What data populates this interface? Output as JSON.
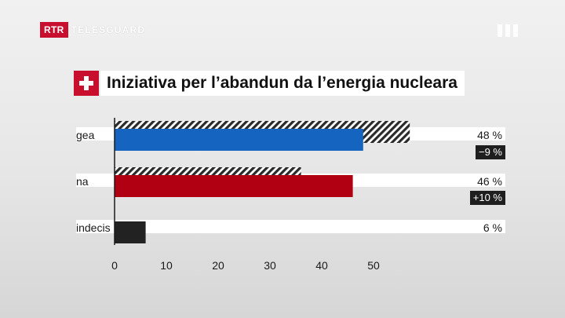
{
  "header": {
    "logo_short": "RTR",
    "logo_name": "TELESGUARD"
  },
  "chart_data": {
    "type": "bar",
    "orientation": "horizontal",
    "title": "Iniziativa per l’abandun da l’energia nucleara",
    "categories": [
      "gea",
      "na",
      "indecis"
    ],
    "values": [
      48,
      46,
      6
    ],
    "value_labels": [
      "48 %",
      "46 %",
      "6 %"
    ],
    "previous_values": [
      57,
      36,
      null
    ],
    "changes": [
      "−9 %",
      "+10 %",
      null
    ],
    "colors": [
      "#1565c0",
      "#b00012",
      "#222222"
    ],
    "xticks": [
      "0",
      "10",
      "20",
      "30",
      "40",
      "50"
    ],
    "xlim": [
      0,
      75
    ],
    "grid": false,
    "legend": "none"
  }
}
